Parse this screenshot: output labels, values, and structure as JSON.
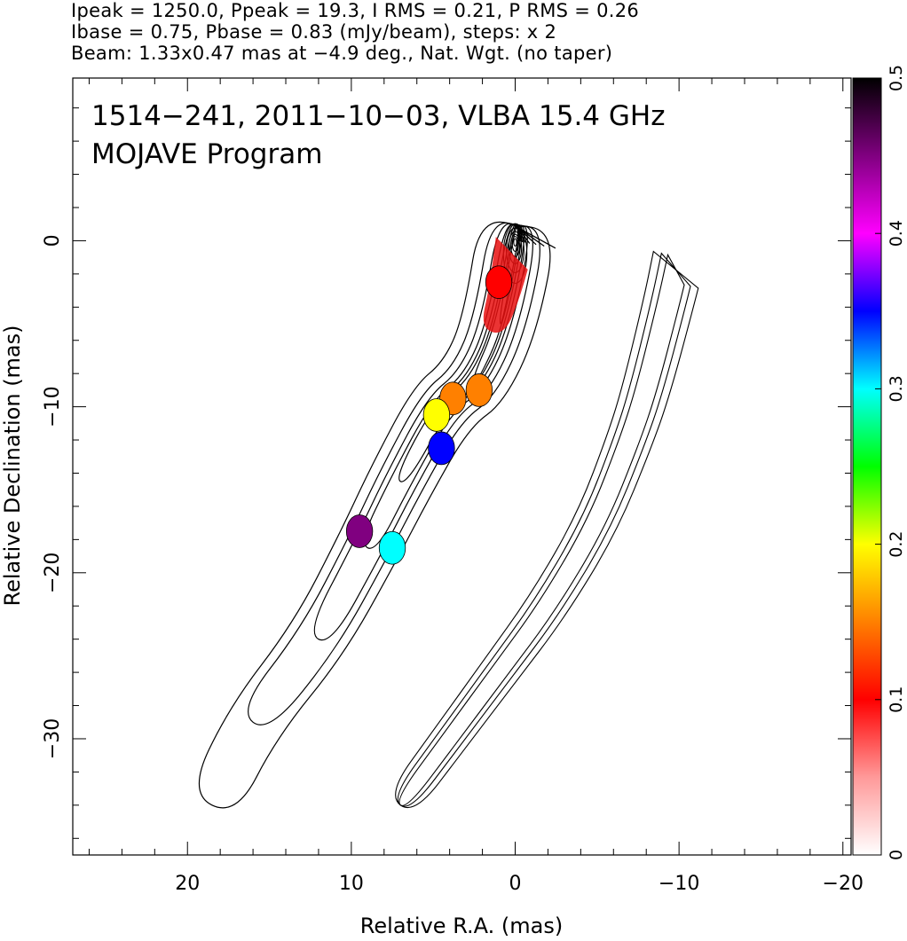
{
  "header": {
    "line1": "Ipeak = 1250.0, Ppeak = 19.3, I RMS = 0.21, P RMS = 0.26",
    "line2": "Ibase = 0.75, Pbase = 0.83 (mJy/beam), steps: x 2",
    "line3": "Beam: 1.33x0.47 mas at −4.9 deg., Nat. Wgt. (no taper)"
  },
  "chart_data": {
    "type": "heatmap",
    "title": "1514−241, 2011−10−03, VLBA 15.4 GHz",
    "subtitle": "MOJAVE Program",
    "xlabel": "Relative R.A. (mas)",
    "ylabel": "Relative Declination (mas)",
    "xlim": [
      27,
      -20.5
    ],
    "ylim": [
      -37,
      9.8
    ],
    "xticks": [
      20,
      10,
      0,
      -10,
      -20
    ],
    "xtick_labels": [
      "20",
      "10",
      "0",
      "−10",
      "−20"
    ],
    "yticks": [
      0,
      -10,
      -20,
      -30
    ],
    "ytick_labels": [
      "0",
      "−10",
      "−20",
      "−30"
    ],
    "colorbar": {
      "range": [
        0,
        0.5
      ],
      "ticks": [
        0,
        0.1,
        0.2,
        0.3,
        0.4,
        0.5
      ],
      "tick_labels": [
        "0",
        "0.1",
        "0.2",
        "0.3",
        "0.4",
        "0.5"
      ],
      "colors": [
        "#ffffff",
        "#ff9999",
        "#ff0000",
        "#ff8000",
        "#ffff00",
        "#00ff00",
        "#00ffff",
        "#0000ff",
        "#ff00ff",
        "#800080",
        "#000000"
      ]
    },
    "total_intensity_jet": {
      "core": [
        0,
        0
      ],
      "path": [
        [
          0,
          0
        ],
        [
          -0.3,
          1.6
        ],
        [
          0.9,
          -5
        ],
        [
          2.5,
          -8.5
        ],
        [
          4.5,
          -10
        ],
        [
          7,
          -14.5
        ],
        [
          9,
          -18.5
        ],
        [
          12,
          -24
        ],
        [
          16,
          -29
        ],
        [
          18.5,
          -34
        ]
      ],
      "contour_widths_mas": [
        5.0,
        3.6,
        2.6,
        1.8,
        1.3,
        0.9,
        0.6,
        0.4
      ]
    },
    "polarization_jet": {
      "offset_mas": -10,
      "path": [
        [
          -10,
          -1
        ],
        [
          -9.3,
          -4
        ],
        [
          -8,
          -9
        ],
        [
          -7,
          -12
        ],
        [
          -5,
          -17
        ],
        [
          -2,
          -22
        ],
        [
          1,
          -26
        ],
        [
          4,
          -30
        ],
        [
          7,
          -34
        ]
      ]
    },
    "fractional_pol_blobs": [
      {
        "x": 1,
        "y": -2.5,
        "value": 0.08
      },
      {
        "x": 2.2,
        "y": -9,
        "value": 0.13
      },
      {
        "x": 3.8,
        "y": -9.5,
        "value": 0.15
      },
      {
        "x": 4.8,
        "y": -10.5,
        "value": 0.22
      },
      {
        "x": 7.5,
        "y": -18.5,
        "value": 0.3
      },
      {
        "x": 9.5,
        "y": -17.5,
        "value": 0.45
      },
      {
        "x": 4.5,
        "y": -12.5,
        "value": 0.35
      }
    ]
  }
}
